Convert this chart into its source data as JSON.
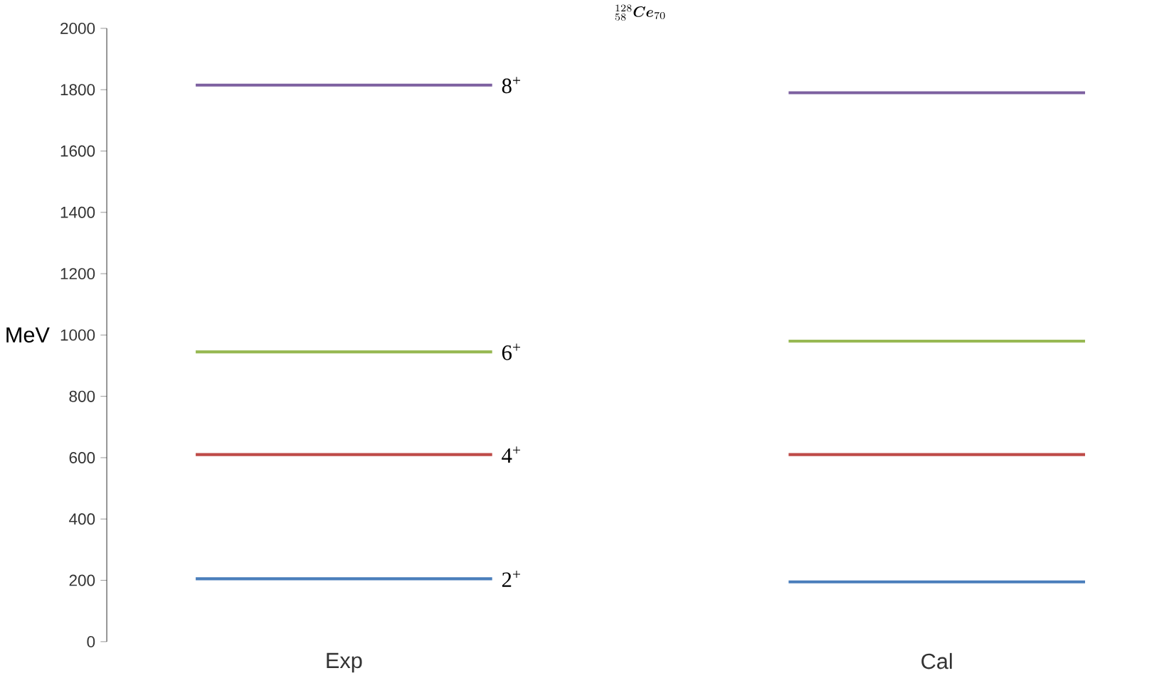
{
  "chart_data": {
    "type": "line",
    "title": "{}^{128}_{58}\\boldsymbol{Ce}_{70}",
    "ylabel": "MeV",
    "categories": [
      null,
      "Exp",
      null,
      null,
      null,
      "Cal",
      null
    ],
    "series": [
      {
        "name": "2$^{+}$",
        "color": "#4a7ebb",
        "values": [
          205,
          205,
          205,
          null,
          195,
          195,
          195
        ]
      },
      {
        "name": "4$^{+}$",
        "color": "#be4b48",
        "values": [
          610,
          610,
          610,
          null,
          610,
          610,
          610
        ]
      },
      {
        "name": "6$^{+}$",
        "color": "#98b954",
        "values": [
          945,
          945,
          945,
          null,
          980,
          980,
          980
        ]
      },
      {
        "name": "8$^{+}$",
        "color": "#7d60a0",
        "values": [
          1815,
          1815,
          1815,
          null,
          1790,
          1790,
          1790
        ]
      }
    ],
    "ylim": [
      0,
      2000
    ],
    "yticks": [
      0,
      200,
      400,
      600,
      800,
      1000,
      1200,
      1400,
      1600,
      1800,
      2000
    ],
    "grid": false,
    "marker": "none",
    "line_style": "solid"
  }
}
